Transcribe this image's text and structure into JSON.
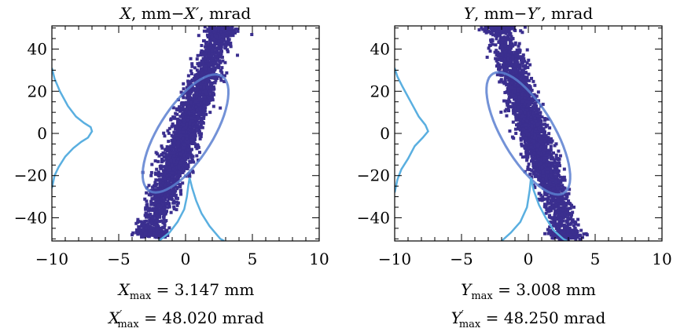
{
  "chart_data": [
    {
      "type": "scatter",
      "title_var": "X",
      "title_prime_var": "X",
      "title_unit": "mm",
      "title_prime_unit": "mrad",
      "xlim": [
        -10,
        10
      ],
      "ylim": [
        -51,
        51
      ],
      "xticks": [
        -10,
        -5,
        0,
        5,
        10
      ],
      "yticks": [
        40,
        20,
        0,
        -20,
        -40
      ],
      "xtick_labels": [
        "−10",
        "−5",
        "0",
        "5",
        "10"
      ],
      "ytick_labels": [
        "40",
        "20",
        "0",
        "−20",
        "−40"
      ],
      "point_color": "#3b2f8f",
      "ellipse_color": "#5a7fd0",
      "profile_color": "#5aafe0",
      "ellipse": {
        "cx": 0.0,
        "cy": 0.0,
        "half_width": 2.3,
        "half_height": 28,
        "tilt_slope": 12.5
      },
      "cloud_axis": {
        "x0": -2.6,
        "y0": -47,
        "x1": 2.6,
        "y1": 48
      },
      "x_profile": [
        [
          -10,
          31
        ],
        [
          -9.8,
          26
        ],
        [
          -9.4,
          20
        ],
        [
          -8.8,
          13
        ],
        [
          -8.2,
          8
        ],
        [
          -7.6,
          5
        ],
        [
          -7.1,
          3
        ],
        [
          -7.0,
          1
        ],
        [
          -7.3,
          -2
        ],
        [
          -7.8,
          -4
        ],
        [
          -8.4,
          -7
        ],
        [
          -9.0,
          -11
        ],
        [
          -9.5,
          -16
        ],
        [
          -9.8,
          -20
        ],
        [
          -10,
          -26
        ]
      ],
      "x_profile_label": "",
      "xp_profile": [
        [
          -2.0,
          -51
        ],
        [
          -1.2,
          -47
        ],
        [
          -0.6,
          -42
        ],
        [
          -0.1,
          -36
        ],
        [
          0.1,
          -30
        ],
        [
          0.2,
          -25
        ],
        [
          0.3,
          -21
        ],
        [
          0.5,
          -26
        ],
        [
          0.8,
          -32
        ],
        [
          1.2,
          -38
        ],
        [
          1.8,
          -44
        ],
        [
          2.6,
          -50
        ],
        [
          2.9,
          -51
        ]
      ],
      "caption_var": "X",
      "caption_val": "3.147",
      "caption_unit": "mm",
      "caption_prime_val": "48.020",
      "caption_prime_unit": "mrad"
    },
    {
      "type": "scatter",
      "title_var": "Y",
      "title_prime_var": "Y",
      "title_unit": "mm",
      "title_prime_unit": "mrad",
      "xlim": [
        -10,
        10
      ],
      "ylim": [
        -51,
        51
      ],
      "xticks": [
        -10,
        -5,
        0,
        5,
        10
      ],
      "yticks": [
        40,
        20,
        0,
        -20,
        -40
      ],
      "xtick_labels": [
        "−10",
        "−5",
        "0",
        "5",
        "10"
      ],
      "ytick_labels": [
        "40",
        "20",
        "0",
        "−20",
        "−40"
      ],
      "point_color": "#3b2f8f",
      "ellipse_color": "#5a7fd0",
      "profile_color": "#5aafe0",
      "ellipse": {
        "cx": 0.0,
        "cy": 0.0,
        "half_width": 2.2,
        "half_height": 29,
        "tilt_slope": -13
      },
      "cloud_axis": {
        "x0": -2.2,
        "y0": 50,
        "x1": 2.9,
        "y1": -48
      },
      "x_profile": [
        [
          -10,
          31
        ],
        [
          -9.8,
          27
        ],
        [
          -9.4,
          22
        ],
        [
          -8.8,
          15
        ],
        [
          -8.2,
          8
        ],
        [
          -7.7,
          4
        ],
        [
          -7.5,
          1
        ],
        [
          -7.9,
          -2
        ],
        [
          -8.5,
          -6
        ],
        [
          -9.0,
          -12
        ],
        [
          -9.5,
          -17
        ],
        [
          -9.8,
          -22
        ],
        [
          -10,
          -28
        ]
      ],
      "x_profile_label": "",
      "xp_profile": [
        [
          -2.0,
          -51
        ],
        [
          -1.3,
          -47
        ],
        [
          -0.6,
          -42
        ],
        [
          -0.1,
          -35
        ],
        [
          0.1,
          -27
        ],
        [
          0.2,
          -21
        ],
        [
          0.4,
          -27
        ],
        [
          0.8,
          -34
        ],
        [
          1.3,
          -40
        ],
        [
          1.9,
          -46
        ],
        [
          2.6,
          -50
        ],
        [
          2.9,
          -51
        ]
      ],
      "caption_var": "Y",
      "caption_val": "3.008",
      "caption_unit": "mm",
      "caption_prime_val": "48.250",
      "caption_prime_unit": "mrad"
    }
  ],
  "labels": {
    "max_sub": "max",
    "prime": "′",
    "dash": "−",
    "comma": ",",
    "equals": "="
  }
}
